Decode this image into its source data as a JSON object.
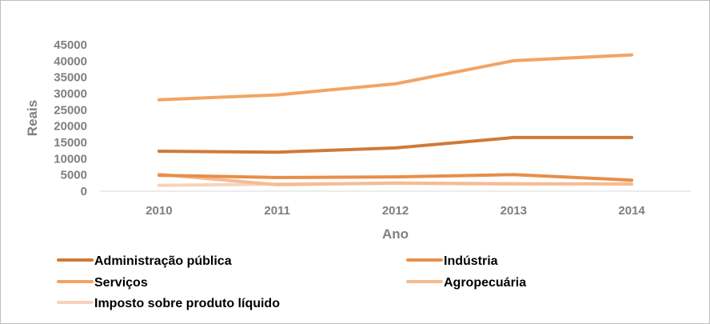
{
  "chart_data": {
    "type": "line",
    "title": "",
    "xlabel": "Ano",
    "ylabel": "Reais",
    "x": [
      "2010",
      "2011",
      "2012",
      "2013",
      "2014"
    ],
    "ylim": [
      0,
      45000
    ],
    "yticks": [
      "0",
      "5000",
      "10000",
      "15000",
      "20000",
      "25000",
      "30000",
      "35000",
      "40000",
      "45000"
    ],
    "grid": false,
    "legend_position": "bottom",
    "series": [
      {
        "name": "Administração pública",
        "color": "#d07a37",
        "values": [
          12300,
          12000,
          13300,
          16500,
          16500
        ]
      },
      {
        "name": "Indústria",
        "color": "#e88e48",
        "values": [
          4900,
          4200,
          4400,
          5100,
          3400
        ]
      },
      {
        "name": "Serviços",
        "color": "#f2a464",
        "values": [
          28100,
          29600,
          33000,
          40100,
          41900
        ]
      },
      {
        "name": "Agropecuária",
        "color": "#f5bc92",
        "values": [
          5200,
          2000,
          2500,
          2300,
          2200
        ]
      },
      {
        "name": "Imposto sobre produto líquido",
        "color": "#f8d2bc",
        "values": [
          1800,
          2200,
          2400,
          2200,
          2300
        ]
      }
    ]
  }
}
